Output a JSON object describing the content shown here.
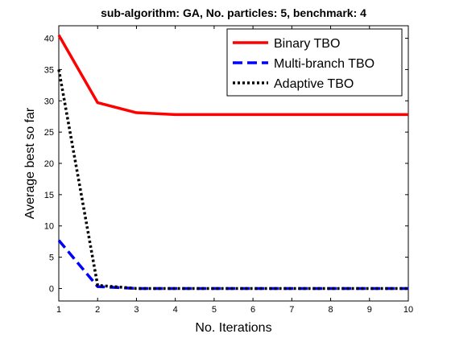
{
  "chart_data": {
    "type": "line",
    "title": "sub-algorithm: GA, No. particles: 5, benchmark: 4",
    "xlabel": "No. Iterations",
    "ylabel": "Average best so far",
    "xlim": [
      1,
      10
    ],
    "ylim": [
      -2,
      42
    ],
    "xticks": [
      1,
      2,
      3,
      4,
      5,
      6,
      7,
      8,
      9,
      10
    ],
    "yticks": [
      0,
      5,
      10,
      15,
      20,
      25,
      30,
      35,
      40
    ],
    "grid": false,
    "legend_position": "top-right",
    "x": [
      1,
      2,
      3,
      4,
      5,
      6,
      7,
      8,
      9,
      10
    ],
    "series": [
      {
        "name": "Binary TBO",
        "color": "#ff0000",
        "style": "solid",
        "values": [
          40.5,
          29.7,
          28.1,
          27.8,
          27.8,
          27.8,
          27.8,
          27.8,
          27.8,
          27.8
        ]
      },
      {
        "name": "Multi-branch TBO",
        "color": "#0000ff",
        "style": "dashed",
        "values": [
          7.7,
          0.3,
          0.0,
          0.0,
          0.0,
          0.0,
          0.0,
          0.0,
          0.0,
          0.0
        ]
      },
      {
        "name": "Adaptive TBO",
        "color": "#000000",
        "style": "dotted",
        "values": [
          35.0,
          0.5,
          0.0,
          0.0,
          0.0,
          0.0,
          0.0,
          0.0,
          0.0,
          0.0
        ]
      }
    ]
  }
}
